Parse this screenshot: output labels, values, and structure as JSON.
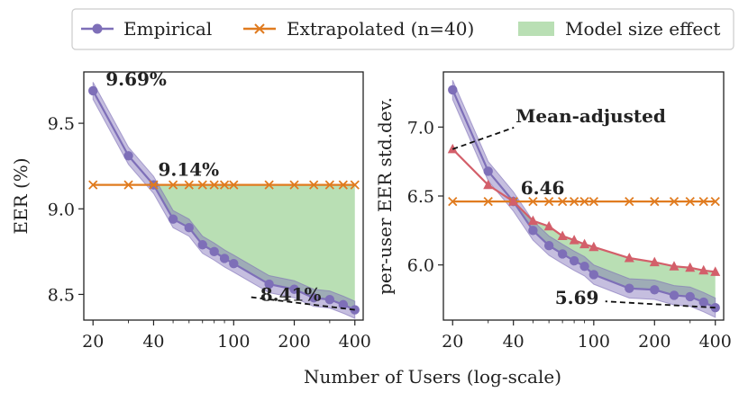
{
  "chart_data": [
    {
      "type": "line",
      "panel": "left",
      "xscale": "log",
      "xlabel": "Number of Users (log-scale)",
      "ylabel": "EER (%)",
      "xlim": [
        18,
        440
      ],
      "ylim": [
        8.35,
        9.8
      ],
      "xticks": [
        20,
        40,
        100,
        200,
        400
      ],
      "xtick_labels": [
        "20",
        "40",
        "100",
        "200",
        "400"
      ],
      "yticks": [
        8.5,
        9.0,
        9.5
      ],
      "ytick_labels": [
        "8.5",
        "9.0",
        "9.5"
      ],
      "series": [
        {
          "name": "Empirical",
          "color": "#7e6fb8",
          "marker": "circle",
          "x": [
            20,
            30,
            40,
            50,
            60,
            70,
            80,
            90,
            100,
            150,
            200,
            250,
            300,
            350,
            400
          ],
          "values": [
            9.69,
            9.31,
            9.14,
            8.94,
            8.89,
            8.79,
            8.75,
            8.71,
            8.68,
            8.56,
            8.53,
            8.48,
            8.47,
            8.44,
            8.41
          ],
          "band": 0.05
        },
        {
          "name": "Extrapolated (n=40)",
          "color": "#e07b1f",
          "marker": "x",
          "x": [
            20,
            30,
            40,
            50,
            60,
            70,
            80,
            90,
            100,
            150,
            200,
            250,
            300,
            350,
            400
          ],
          "values": [
            9.14,
            9.14,
            9.14,
            9.14,
            9.14,
            9.14,
            9.14,
            9.14,
            9.14,
            9.14,
            9.14,
            9.14,
            9.14,
            9.14,
            9.14
          ]
        }
      ],
      "fill": {
        "name": "Model size effect",
        "color": "#b9dfb4",
        "from_x": 40,
        "between": [
          "Extrapolated (n=40)",
          "Empirical"
        ]
      },
      "annotations": [
        {
          "text": "9.69%",
          "x": 20,
          "y": 9.69
        },
        {
          "text": "9.14%",
          "x": 40,
          "y": 9.14
        },
        {
          "text": "8.41%",
          "x": 400,
          "y": 8.41
        }
      ]
    },
    {
      "type": "line",
      "panel": "right",
      "xscale": "log",
      "xlabel": "Number of Users (log-scale)",
      "ylabel": "per-user EER std.dev.",
      "xlim": [
        18,
        440
      ],
      "ylim": [
        5.6,
        7.4
      ],
      "xticks": [
        20,
        40,
        100,
        200,
        400
      ],
      "xtick_labels": [
        "20",
        "40",
        "100",
        "200",
        "400"
      ],
      "yticks": [
        6.0,
        6.5,
        7.0
      ],
      "ytick_labels": [
        "6.0",
        "6.5",
        "7.0"
      ],
      "series": [
        {
          "name": "Empirical",
          "color": "#7e6fb8",
          "marker": "circle",
          "x": [
            20,
            30,
            40,
            50,
            60,
            70,
            80,
            90,
            100,
            150,
            200,
            250,
            300,
            350,
            400
          ],
          "values": [
            7.27,
            6.68,
            6.46,
            6.25,
            6.14,
            6.08,
            6.03,
            5.99,
            5.93,
            5.83,
            5.82,
            5.78,
            5.77,
            5.73,
            5.69
          ],
          "band": 0.07
        },
        {
          "name": "Extrapolated (n=40)",
          "color": "#e07b1f",
          "marker": "x",
          "x": [
            20,
            30,
            40,
            50,
            60,
            70,
            80,
            90,
            100,
            150,
            200,
            250,
            300,
            350,
            400
          ],
          "values": [
            6.46,
            6.46,
            6.46,
            6.46,
            6.46,
            6.46,
            6.46,
            6.46,
            6.46,
            6.46,
            6.46,
            6.46,
            6.46,
            6.46,
            6.46
          ]
        },
        {
          "name": "Mean-adjusted",
          "color": "#d35f6a",
          "marker": "triangle",
          "x": [
            20,
            30,
            40,
            50,
            60,
            70,
            80,
            90,
            100,
            150,
            200,
            250,
            300,
            350,
            400
          ],
          "values": [
            6.84,
            6.58,
            6.46,
            6.32,
            6.28,
            6.21,
            6.18,
            6.15,
            6.13,
            6.05,
            6.02,
            5.99,
            5.98,
            5.96,
            5.95
          ]
        }
      ],
      "fill": {
        "name": "Model size effect",
        "color": "#b9dfb4",
        "from_x": 40,
        "between": [
          "Mean-adjusted",
          "Empirical"
        ]
      },
      "annotations": [
        {
          "text": "Mean-adjusted",
          "x": 20,
          "y": 6.84
        },
        {
          "text": "6.46",
          "x": 40,
          "y": 6.46
        },
        {
          "text": "5.69",
          "x": 400,
          "y": 5.69
        }
      ]
    }
  ],
  "legend": {
    "location": "top-center",
    "entries": [
      {
        "label": "Empirical",
        "color": "#7e6fb8",
        "marker": "circle"
      },
      {
        "label": "Extrapolated (n=40)",
        "color": "#e07b1f",
        "marker": "x"
      },
      {
        "label": "Model size effect",
        "color": "#b9dfb4",
        "marker": "patch"
      }
    ]
  },
  "shared_xlabel": "Number of Users (log-scale)"
}
